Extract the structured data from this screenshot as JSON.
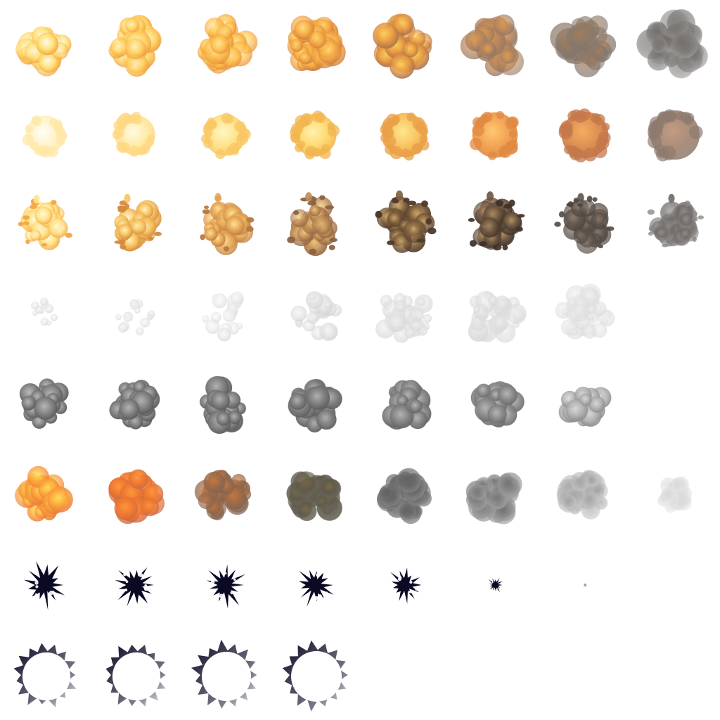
{
  "sprite_sheet": {
    "columns": 8,
    "rows": [
      {
        "name": "fireball-burst",
        "kind": "puff",
        "frames": 8,
        "colors": [
          {
            "core": "#fffdf2",
            "mid": "#ffe27a",
            "edge": "#f2a13c",
            "opacity": 0.95
          },
          {
            "core": "#fff6cf",
            "mid": "#ffd465",
            "edge": "#ef9a3a",
            "opacity": 0.95
          },
          {
            "core": "#ffeda8",
            "mid": "#ffc24f",
            "edge": "#e38b36",
            "opacity": 0.93
          },
          {
            "core": "#ffe07a",
            "mid": "#f8ac44",
            "edge": "#cc7a3a",
            "opacity": 0.9
          },
          {
            "core": "#ffd860",
            "mid": "#e99a42",
            "edge": "#9f6b4a",
            "opacity": 0.88
          },
          {
            "core": "#e8a04a",
            "mid": "#b8865e",
            "edge": "#8a7462",
            "opacity": 0.82
          },
          {
            "core": "#a57c5a",
            "mid": "#8d7a68",
            "edge": "#7e7670",
            "opacity": 0.78
          },
          {
            "core": "#6e6a66",
            "mid": "#7c7977",
            "edge": "#9b9896",
            "opacity": 0.72
          }
        ]
      },
      {
        "name": "flash-ball",
        "kind": "ball",
        "frames": 8,
        "colors": [
          {
            "core": "#fffef5",
            "mid": "#fff3c8",
            "edge": "#ffe8a8",
            "opacity": 0.9
          },
          {
            "core": "#fffbe0",
            "mid": "#ffeaa5",
            "edge": "#ffd882",
            "opacity": 0.92
          },
          {
            "core": "#fff5c0",
            "mid": "#ffe286",
            "edge": "#f8c864",
            "opacity": 0.93
          },
          {
            "core": "#fff0a8",
            "mid": "#ffd86e",
            "edge": "#f2b650",
            "opacity": 0.94
          },
          {
            "core": "#ffe48a",
            "mid": "#f8c25a",
            "edge": "#eaa048",
            "opacity": 0.95
          },
          {
            "core": "#ffc468",
            "mid": "#f2a04c",
            "edge": "#e08a44",
            "opacity": 0.95
          },
          {
            "core": "#f2a858",
            "mid": "#dc8a48",
            "edge": "#c4784a",
            "opacity": 0.94
          },
          {
            "core": "#b88a6a",
            "mid": "#9c7a64",
            "edge": "#8e7a6e",
            "opacity": 0.85
          }
        ]
      },
      {
        "name": "debris-explosion",
        "kind": "debris",
        "frames": 8,
        "colors": [
          {
            "core": "#fffbe6",
            "mid": "#ffe48a",
            "edge": "#f3a744",
            "opacity": 0.95
          },
          {
            "core": "#fff3c4",
            "mid": "#f8c45e",
            "edge": "#d48a40",
            "opacity": 0.95
          },
          {
            "core": "#ffe6a0",
            "mid": "#e8a854",
            "edge": "#b87a42",
            "opacity": 0.95
          },
          {
            "core": "#f4cc80",
            "mid": "#c08c56",
            "edge": "#8a6242",
            "opacity": 0.95
          },
          {
            "core": "#d8b070",
            "mid": "#7e5e3c",
            "edge": "#4e3a2a",
            "opacity": 0.95
          },
          {
            "core": "#b89262",
            "mid": "#6c5540",
            "edge": "#3e3228",
            "opacity": 0.93
          },
          {
            "core": "#8e7a6a",
            "mid": "#5e544c",
            "edge": "#4a4440",
            "opacity": 0.88
          },
          {
            "core": "#9a9694",
            "mid": "#6e6a68",
            "edge": "#8a8684",
            "opacity": 0.78
          }
        ]
      },
      {
        "name": "white-smoke",
        "kind": "wisp",
        "frames": 7,
        "colors": [
          {
            "core": "#f6f6f6",
            "mid": "#e6e6e6",
            "edge": "#d4d4d4",
            "opacity": 0.85
          },
          {
            "core": "#f8f8f8",
            "mid": "#e8e8e8",
            "edge": "#d6d6d6",
            "opacity": 0.85
          },
          {
            "core": "#fafafa",
            "mid": "#ececec",
            "edge": "#dadada",
            "opacity": 0.88
          },
          {
            "core": "#f4f4f4",
            "mid": "#e4e4e4",
            "edge": "#d2d2d2",
            "opacity": 0.9
          },
          {
            "core": "#f0f0f0",
            "mid": "#e2e2e2",
            "edge": "#d6d6d6",
            "opacity": 0.88
          },
          {
            "core": "#eeeeee",
            "mid": "#e0e0e0",
            "edge": "#d8d8d8",
            "opacity": 0.85
          },
          {
            "core": "#f0f0f0",
            "mid": "#e4e4e4",
            "edge": "#dcdcdc",
            "opacity": 0.8
          }
        ]
      },
      {
        "name": "gray-smoke",
        "kind": "smoke",
        "frames": 7,
        "colors": [
          {
            "core": "#b8b8b8",
            "mid": "#858585",
            "edge": "#5a5a5a",
            "opacity": 0.97
          },
          {
            "core": "#b4b4b4",
            "mid": "#838383",
            "edge": "#5a5a5a",
            "opacity": 0.97
          },
          {
            "core": "#b2b2b2",
            "mid": "#828282",
            "edge": "#5c5c5c",
            "opacity": 0.97
          },
          {
            "core": "#b0b0b0",
            "mid": "#808080",
            "edge": "#5e5e5e",
            "opacity": 0.96
          },
          {
            "core": "#b6b6b6",
            "mid": "#868686",
            "edge": "#646464",
            "opacity": 0.95
          },
          {
            "core": "#bababa",
            "mid": "#8c8c8c",
            "edge": "#6c6c6c",
            "opacity": 0.92
          },
          {
            "core": "#dcdcdc",
            "mid": "#b4b4b4",
            "edge": "#8a8a8a",
            "opacity": 0.88
          }
        ]
      },
      {
        "name": "fire-to-smoke",
        "kind": "puff",
        "frames": 8,
        "colors": [
          {
            "core": "#ffe95c",
            "mid": "#fba33a",
            "edge": "#e8783a",
            "opacity": 0.92
          },
          {
            "core": "#ff9a3e",
            "mid": "#f0782e",
            "edge": "#c86a46",
            "opacity": 0.92
          },
          {
            "core": "#c87a3e",
            "mid": "#9c6a48",
            "edge": "#7e6454",
            "opacity": 0.9
          },
          {
            "core": "#7c6a48",
            "mid": "#5e5a4a",
            "edge": "#6a665e",
            "opacity": 0.9
          },
          {
            "core": "#5e5e5e",
            "mid": "#6a6a6a",
            "edge": "#8a8a8a",
            "opacity": 0.85
          },
          {
            "core": "#6e6e6e",
            "mid": "#8a8a8a",
            "edge": "#a4a4a4",
            "opacity": 0.8
          },
          {
            "core": "#9a9a9a",
            "mid": "#b4b4b4",
            "edge": "#c8c8c8",
            "opacity": 0.75
          },
          {
            "core": "#d4d4d4",
            "mid": "#dedede",
            "edge": "#e6e6e6",
            "opacity": 0.7
          }
        ]
      },
      {
        "name": "dark-splat",
        "kind": "splat",
        "frames": 7,
        "colors": [
          {
            "core": "#0b0a24",
            "mid": "#0b0a24",
            "edge": "#0b0a24",
            "opacity": 1
          },
          {
            "core": "#0b0a24",
            "mid": "#0b0a24",
            "edge": "#0b0a24",
            "opacity": 1
          },
          {
            "core": "#0b0a24",
            "mid": "#0b0a24",
            "edge": "#0b0a24",
            "opacity": 1
          },
          {
            "core": "#0b0a24",
            "mid": "#0b0a24",
            "edge": "#0b0a24",
            "opacity": 1
          },
          {
            "core": "#0b0a24",
            "mid": "#0b0a24",
            "edge": "#0b0a24",
            "opacity": 1
          },
          {
            "core": "#0b0a24",
            "mid": "#0b0a24",
            "edge": "#0b0a24",
            "opacity": 1
          },
          {
            "core": "#2a2840",
            "mid": "#2a2840",
            "edge": "#2a2840",
            "opacity": 0.5
          }
        ]
      },
      {
        "name": "shockwave-ring",
        "kind": "ring",
        "frames": 4,
        "colors": [
          {
            "core": "#ffffff",
            "mid": "#0b0a24",
            "edge": "#0b0a24",
            "opacity": 1
          },
          {
            "core": "#ffffff",
            "mid": "#0b0a24",
            "edge": "#0b0a24",
            "opacity": 1
          },
          {
            "core": "#ffffff",
            "mid": "#0b0a24",
            "edge": "#0b0a24",
            "opacity": 1
          },
          {
            "core": "#ffffff",
            "mid": "#0b0a24",
            "edge": "#0b0a24",
            "opacity": 1
          }
        ]
      }
    ]
  }
}
